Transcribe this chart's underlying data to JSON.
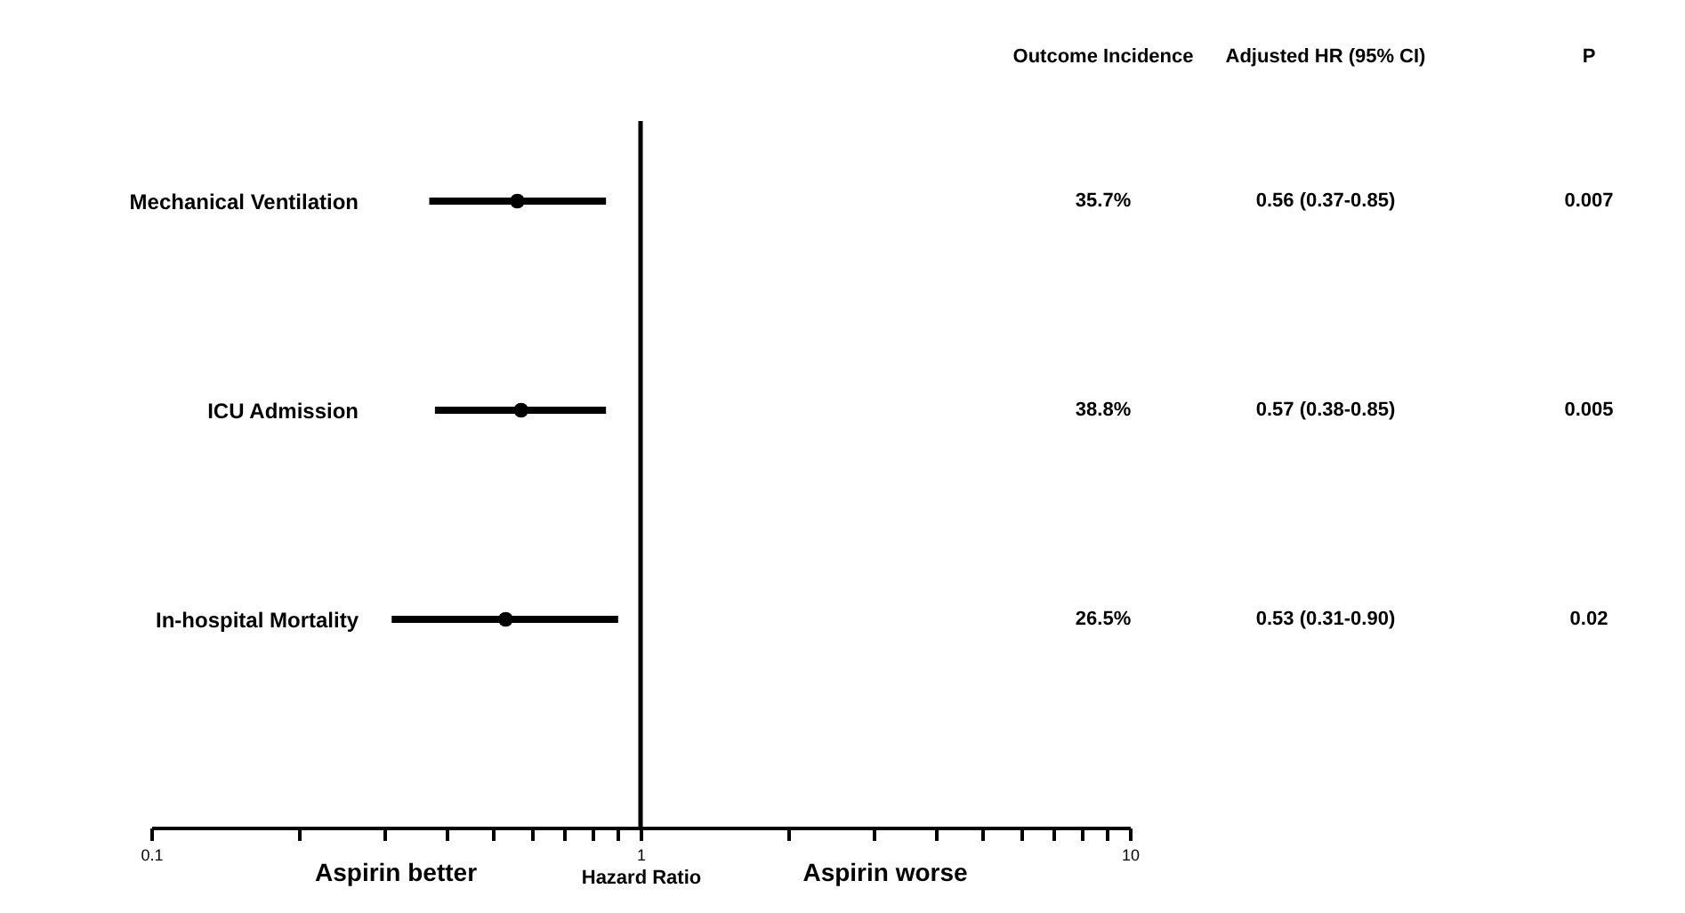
{
  "chart_data": {
    "type": "scatter",
    "orientation": "horizontal",
    "xlabel": "Hazard Ratio",
    "categories": [
      "Mechanical Ventilation",
      "ICU Admission",
      "In-hospital Mortality"
    ],
    "values": [
      0.56,
      0.57,
      0.53
    ],
    "errors": [
      [
        0.37,
        0.85
      ],
      [
        0.38,
        0.85
      ],
      [
        0.31,
        0.9
      ]
    ],
    "value_labels": [
      "0.56 (0.37-0.85)",
      "0.57 (0.38-0.85)",
      "0.53 (0.31-0.90)"
    ],
    "color": "#000000",
    "marker": "circle",
    "log": "x",
    "grid": false,
    "xlim": [
      0.1,
      10
    ],
    "xticks": [
      0.1,
      {
        "value": 0.2,
        "label": null
      },
      {
        "value": 0.3,
        "label": null
      },
      {
        "value": 0.4,
        "label": null
      },
      {
        "value": 0.5,
        "label": null
      },
      {
        "value": 0.6,
        "label": null
      },
      {
        "value": 0.7,
        "label": null
      },
      {
        "value": 0.8,
        "label": null
      },
      {
        "value": 0.9,
        "label": null
      },
      1,
      {
        "value": 2,
        "label": null
      },
      {
        "value": 3,
        "label": null
      },
      {
        "value": 4,
        "label": null
      },
      {
        "value": 5,
        "label": null
      },
      {
        "value": 6,
        "label": null
      },
      {
        "value": 7,
        "label": null
      },
      {
        "value": 8,
        "label": null
      },
      {
        "value": 9,
        "label": null
      },
      10
    ],
    "ref_lines": [
      {
        "axis": "x",
        "value": 1,
        "color": "#000000"
      }
    ],
    "annotations": [
      "Outcome Incidence",
      "Adjusted HR (95% CI)",
      "P",
      "35.7%",
      "0.007",
      "38.8%",
      "0.005",
      "26.5%",
      "0.02",
      "Aspirin better",
      "Aspirin worse"
    ]
  }
}
